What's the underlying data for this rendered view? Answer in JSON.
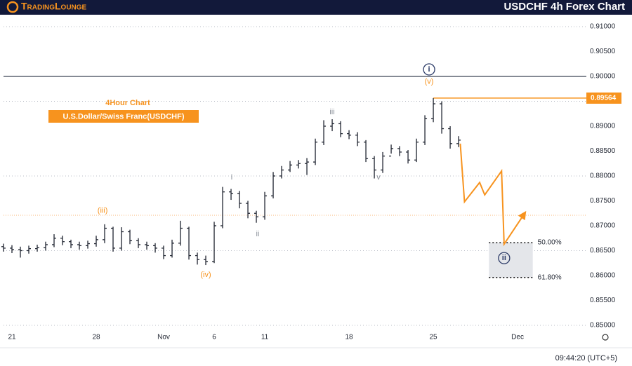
{
  "header": {
    "logo": "TradingLounge",
    "title": "USDCHF 4h Forex Chart"
  },
  "chart_data": {
    "type": "ohlc",
    "annotations": [
      "4Hour Chart",
      "U.S.Dollar/Swiss Franc(USDCHF)"
    ],
    "x": [
      -0.5,
      0,
      0.5,
      1,
      1.5,
      2,
      2.5,
      3,
      3.5,
      4,
      4.5,
      5,
      5.5,
      6,
      6.5,
      7,
      7.5,
      8,
      8.5,
      9,
      9.5,
      10,
      10.5,
      11,
      11.5,
      12,
      12.5,
      13,
      13.5,
      14,
      14.5,
      15,
      15.5,
      16,
      16.5,
      17,
      17.5,
      18,
      18.5,
      19,
      19.5,
      20,
      20.5,
      21,
      21.5,
      22,
      22.5,
      23,
      23.5,
      24,
      24.5,
      25,
      25.5,
      26,
      26.5
    ],
    "open": [
      0.8658,
      0.8655,
      0.8652,
      0.865,
      0.8654,
      0.8656,
      0.8662,
      0.8675,
      0.8668,
      0.8662,
      0.866,
      0.8664,
      0.8672,
      0.8695,
      0.8655,
      0.8688,
      0.867,
      0.8662,
      0.866,
      0.8655,
      0.864,
      0.8665,
      0.8695,
      0.864,
      0.8632,
      0.8628,
      0.87,
      0.8768,
      0.8765,
      0.8745,
      0.8725,
      0.8718,
      0.876,
      0.88,
      0.8812,
      0.8822,
      0.8825,
      0.8828,
      0.8868,
      0.89,
      0.8905,
      0.8885,
      0.8882,
      0.8868,
      0.8835,
      0.8812,
      0.884,
      0.8855,
      0.8848,
      0.8832,
      0.8868,
      0.8915,
      0.8945,
      0.8895,
      0.8865
    ],
    "high": [
      0.8664,
      0.8661,
      0.8658,
      0.866,
      0.8662,
      0.8668,
      0.8683,
      0.868,
      0.8672,
      0.8668,
      0.867,
      0.868,
      0.8703,
      0.8698,
      0.8697,
      0.8692,
      0.8675,
      0.8668,
      0.8665,
      0.866,
      0.8672,
      0.871,
      0.8698,
      0.8646,
      0.864,
      0.8708,
      0.8778,
      0.8774,
      0.877,
      0.875,
      0.873,
      0.8768,
      0.8808,
      0.882,
      0.883,
      0.8832,
      0.8836,
      0.8875,
      0.8912,
      0.8914,
      0.891,
      0.8892,
      0.8888,
      0.8872,
      0.884,
      0.8848,
      0.8863,
      0.886,
      0.8852,
      0.8875,
      0.8922,
      0.89564,
      0.895,
      0.89,
      0.888
    ],
    "low": [
      0.8648,
      0.8645,
      0.8636,
      0.8644,
      0.8648,
      0.865,
      0.8657,
      0.8661,
      0.8655,
      0.8652,
      0.8654,
      0.8658,
      0.8665,
      0.8648,
      0.865,
      0.8663,
      0.8655,
      0.8652,
      0.8646,
      0.8633,
      0.8636,
      0.866,
      0.8632,
      0.8622,
      0.8621,
      0.8625,
      0.8695,
      0.8752,
      0.8735,
      0.8715,
      0.8706,
      0.8712,
      0.8755,
      0.8795,
      0.8808,
      0.8815,
      0.8802,
      0.8822,
      0.8862,
      0.889,
      0.8878,
      0.8874,
      0.886,
      0.8828,
      0.8795,
      0.8806,
      0.8845,
      0.884,
      0.8825,
      0.8828,
      0.8862,
      0.8908,
      0.8885,
      0.8855,
      0.8858
    ],
    "close": [
      0.8655,
      0.8652,
      0.865,
      0.8654,
      0.8656,
      0.8662,
      0.8675,
      0.8668,
      0.8662,
      0.866,
      0.8664,
      0.8672,
      0.8695,
      0.8655,
      0.8688,
      0.867,
      0.8662,
      0.866,
      0.8655,
      0.864,
      0.8665,
      0.8695,
      0.864,
      0.8632,
      0.8628,
      0.87,
      0.8768,
      0.8765,
      0.8745,
      0.8725,
      0.8718,
      0.876,
      0.88,
      0.8812,
      0.8822,
      0.8825,
      0.8828,
      0.8868,
      0.89,
      0.8905,
      0.8885,
      0.8882,
      0.8868,
      0.8835,
      0.8812,
      0.884,
      0.8855,
      0.8848,
      0.8832,
      0.8868,
      0.8915,
      0.8945,
      0.8895,
      0.8865,
      0.8872
    ],
    "color": "#1f2430",
    "xlim": [
      -0.5,
      34.08
    ],
    "xticks": [
      {
        "value": 0,
        "label": "21"
      },
      {
        "value": 5,
        "label": "28"
      },
      {
        "value": 9,
        "label": "Nov"
      },
      {
        "value": 12,
        "label": "6"
      },
      {
        "value": 15,
        "label": "11"
      },
      {
        "value": 20,
        "label": "18"
      },
      {
        "value": 25,
        "label": "25"
      },
      {
        "value": 30,
        "label": "Dec"
      }
    ],
    "ylim": [
      0.84915,
      0.91225
    ],
    "yticks": [
      {
        "value": 0.91,
        "label": "0.91000"
      },
      {
        "value": 0.905,
        "label": "0.90500"
      },
      {
        "value": 0.9,
        "label": "0.90000"
      },
      {
        "value": 0.895,
        "label": "0.89500"
      },
      {
        "value": 0.89,
        "label": "0.89000"
      },
      {
        "value": 0.885,
        "label": "0.88500"
      },
      {
        "value": 0.88,
        "label": "0.88000"
      },
      {
        "value": 0.875,
        "label": "0.87500"
      },
      {
        "value": 0.87,
        "label": "0.87000"
      },
      {
        "value": 0.865,
        "label": "0.86500"
      },
      {
        "value": 0.86,
        "label": "0.86000"
      },
      {
        "value": 0.855,
        "label": "0.85500"
      },
      {
        "value": 0.85,
        "label": "0.85000"
      }
    ],
    "grid": true,
    "price_line": {
      "value": 0.89564,
      "color": "#f7931e"
    },
    "hlines": [
      {
        "value": 0.9,
        "color": "#5d6370",
        "style": "solid"
      },
      {
        "value": 0.8721,
        "color": "#f9b77a",
        "style": "dotted"
      }
    ],
    "wave_labels": [
      {
        "text": "i",
        "x": 24.75,
        "y": 0.9014,
        "color": "#2b3a67",
        "circled": true
      },
      {
        "text": "(v)",
        "x": 24.75,
        "y": 0.8989,
        "color": "#f7931e",
        "circled": false
      },
      {
        "text": "iii",
        "x": 19.0,
        "y": 0.8928,
        "color": "#8a8f99",
        "circled": false
      },
      {
        "text": "i",
        "x": 13.04,
        "y": 0.8797,
        "color": "#8a8f99",
        "circled": false
      },
      {
        "text": "ii",
        "x": 14.58,
        "y": 0.8683,
        "color": "#8a8f99",
        "circled": false
      },
      {
        "text": "v",
        "x": 21.75,
        "y": 0.8797,
        "color": "#8a8f99",
        "circled": false
      },
      {
        "text": "(iii)",
        "x": 5.38,
        "y": 0.873,
        "color": "#f7931e",
        "circled": false
      },
      {
        "text": "(iv)",
        "x": 11.5,
        "y": 0.8601,
        "color": "#f7931e",
        "circled": false
      },
      {
        "text": "ii",
        "x": 29.2,
        "y": 0.8635,
        "color": "#2b3a67",
        "circled": true
      }
    ],
    "projection": {
      "x": [
        26.6,
        26.85,
        27.75,
        28.05,
        29.05,
        29.2,
        30.4
      ],
      "y": [
        0.8865,
        0.8748,
        0.8787,
        0.8762,
        0.881,
        0.8663,
        0.8724
      ],
      "color": "#f7931e"
    },
    "fib_zone": {
      "x": [
        28.3,
        30.9
      ],
      "levels": [
        {
          "value": 0.8666,
          "label": "50.00%"
        },
        {
          "value": 0.8596,
          "label": "61.80%"
        }
      ]
    },
    "time": "09:44:20 (UTC+5)"
  }
}
